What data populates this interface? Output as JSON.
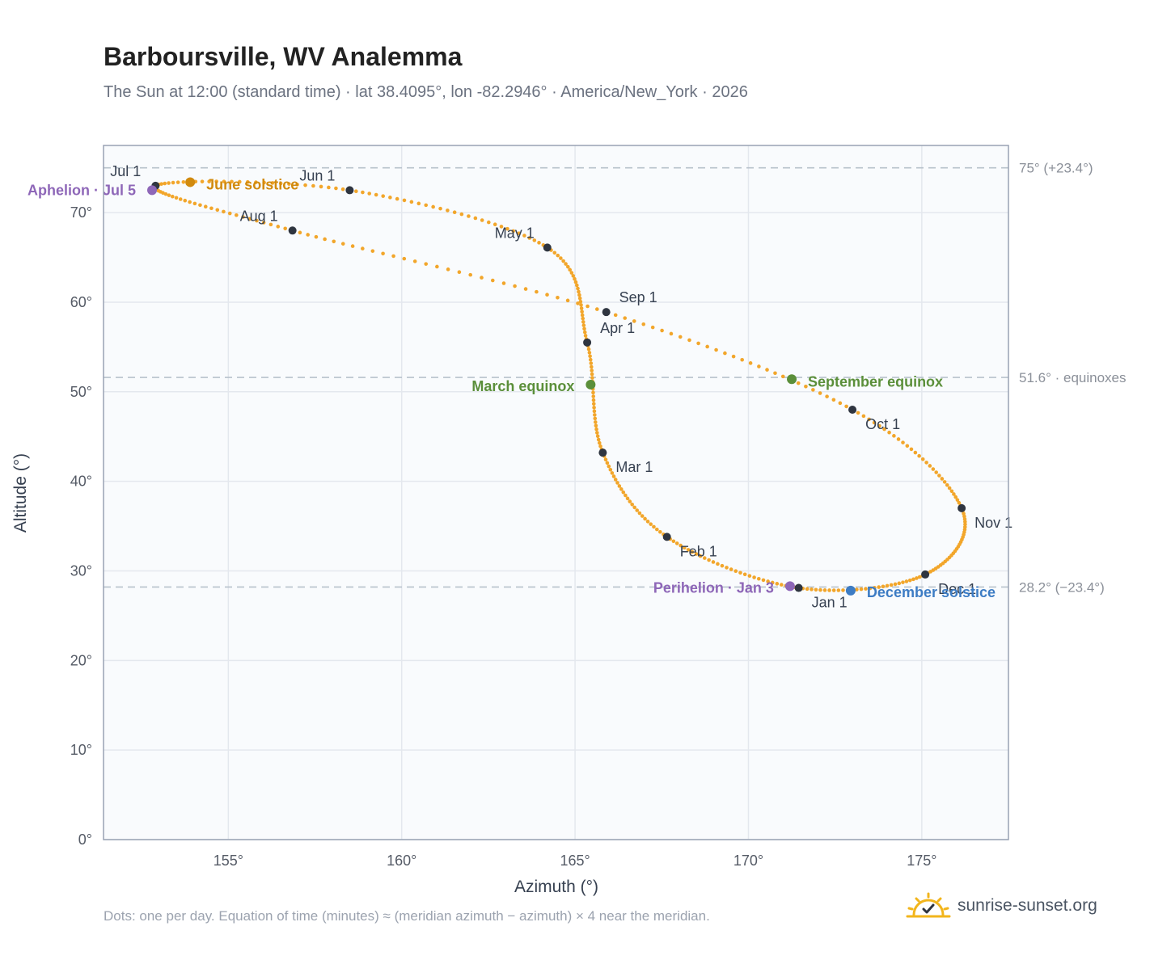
{
  "title": "Barboursville, WV Analemma",
  "subtitle": "The Sun at 12:00 (standard time) · lat 38.4095°, lon -82.2946° · America/New_York · 2026",
  "footnote": "Dots: one per day. Equation of time (minutes) ≈ (meridian azimuth − azimuth) × 4 near the meridian.",
  "brand": {
    "text": "sunrise-sunset.org",
    "icon": "sun-check-icon",
    "icon_color": "#f2b51c"
  },
  "chart_data": {
    "type": "scatter",
    "title": "Barboursville, WV Analemma",
    "xlabel": "Azimuth (°)",
    "ylabel": "Altitude (°)",
    "xlim": [
      151.4,
      177.5
    ],
    "ylim": [
      0,
      77.5
    ],
    "xticks": [
      155,
      160,
      165,
      170,
      175
    ],
    "xtick_labels": [
      "155°",
      "160°",
      "165°",
      "170°",
      "175°"
    ],
    "yticks": [
      0,
      10,
      20,
      30,
      40,
      50,
      60,
      70
    ],
    "ytick_labels": [
      "0°",
      "10°",
      "20°",
      "30°",
      "40°",
      "50°",
      "60°",
      "70°"
    ],
    "grid": true,
    "colors": {
      "path": "#f2a62b",
      "month": "#2f3540",
      "plot_bg": "#f9fbfd",
      "frame": "#98a2b3",
      "grid": "#e4e8ee",
      "ref_line": "#b8c2cc"
    },
    "reference_lines": [
      {
        "y": 75,
        "label": "75° (+23.4°)"
      },
      {
        "y": 51.6,
        "label": "51.6° · equinoxes"
      },
      {
        "y": 28.2,
        "label": "28.2° (−23.4°)"
      }
    ],
    "month_markers": [
      {
        "label": "Jan 1",
        "x": 171.45,
        "y": 28.1
      },
      {
        "label": "Feb 1",
        "x": 167.65,
        "y": 33.8
      },
      {
        "label": "Mar 1",
        "x": 165.8,
        "y": 43.2
      },
      {
        "label": "Apr 1",
        "x": 165.35,
        "y": 55.5
      },
      {
        "label": "May 1",
        "x": 164.2,
        "y": 66.1
      },
      {
        "label": "Jun 1",
        "x": 158.5,
        "y": 72.5
      },
      {
        "label": "Jul 1",
        "x": 152.9,
        "y": 73.0
      },
      {
        "label": "Aug 1",
        "x": 156.85,
        "y": 68.0
      },
      {
        "label": "Sep 1",
        "x": 165.9,
        "y": 58.9
      },
      {
        "label": "Oct 1",
        "x": 173.0,
        "y": 48.0
      },
      {
        "label": "Nov 1",
        "x": 176.15,
        "y": 37.0
      },
      {
        "label": "Dec 1",
        "x": 175.1,
        "y": 29.6
      }
    ],
    "events": [
      {
        "label": "Aphelion · Jul 5",
        "x": 152.8,
        "y": 72.5,
        "color": "#8e67b8"
      },
      {
        "label": "June solstice",
        "x": 153.9,
        "y": 73.4,
        "color": "#d18a0e"
      },
      {
        "label": "March equinox",
        "x": 165.45,
        "y": 50.8,
        "color": "#5b8f3a"
      },
      {
        "label": "September equinox",
        "x": 171.25,
        "y": 51.4,
        "color": "#5b8f3a"
      },
      {
        "label": "Perihelion · Jan 3",
        "x": 171.2,
        "y": 28.3,
        "color": "#8e67b8"
      },
      {
        "label": "December solstice",
        "x": 172.95,
        "y": 27.8,
        "color": "#3d7cc4"
      }
    ]
  }
}
